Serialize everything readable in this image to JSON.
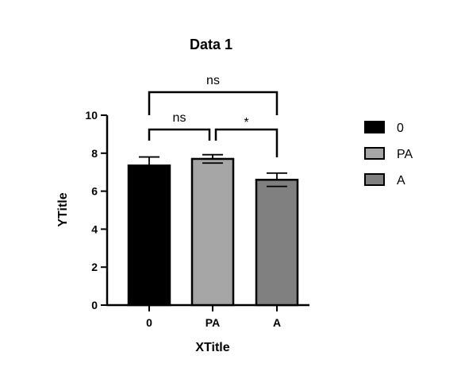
{
  "chart_data": {
    "type": "bar",
    "title": "Data 1",
    "xlabel": "XTitle",
    "ylabel": "YTitle",
    "ylim": [
      0,
      10
    ],
    "yticks": [
      0,
      2,
      4,
      6,
      8,
      10
    ],
    "categories": [
      "0",
      "PA",
      "A"
    ],
    "values": [
      7.35,
      7.7,
      6.6
    ],
    "errors": [
      0.45,
      0.22,
      0.35
    ],
    "colors": [
      "#000000",
      "#a6a6a6",
      "#808080"
    ],
    "grid": false,
    "legend": {
      "placement": "right",
      "entries": [
        "0",
        "PA",
        "A"
      ]
    },
    "significance": [
      {
        "from": "0",
        "to": "PA",
        "label": "ns"
      },
      {
        "from": "PA",
        "to": "A",
        "label": "*"
      },
      {
        "from": "0",
        "to": "A",
        "label": "ns"
      }
    ]
  }
}
